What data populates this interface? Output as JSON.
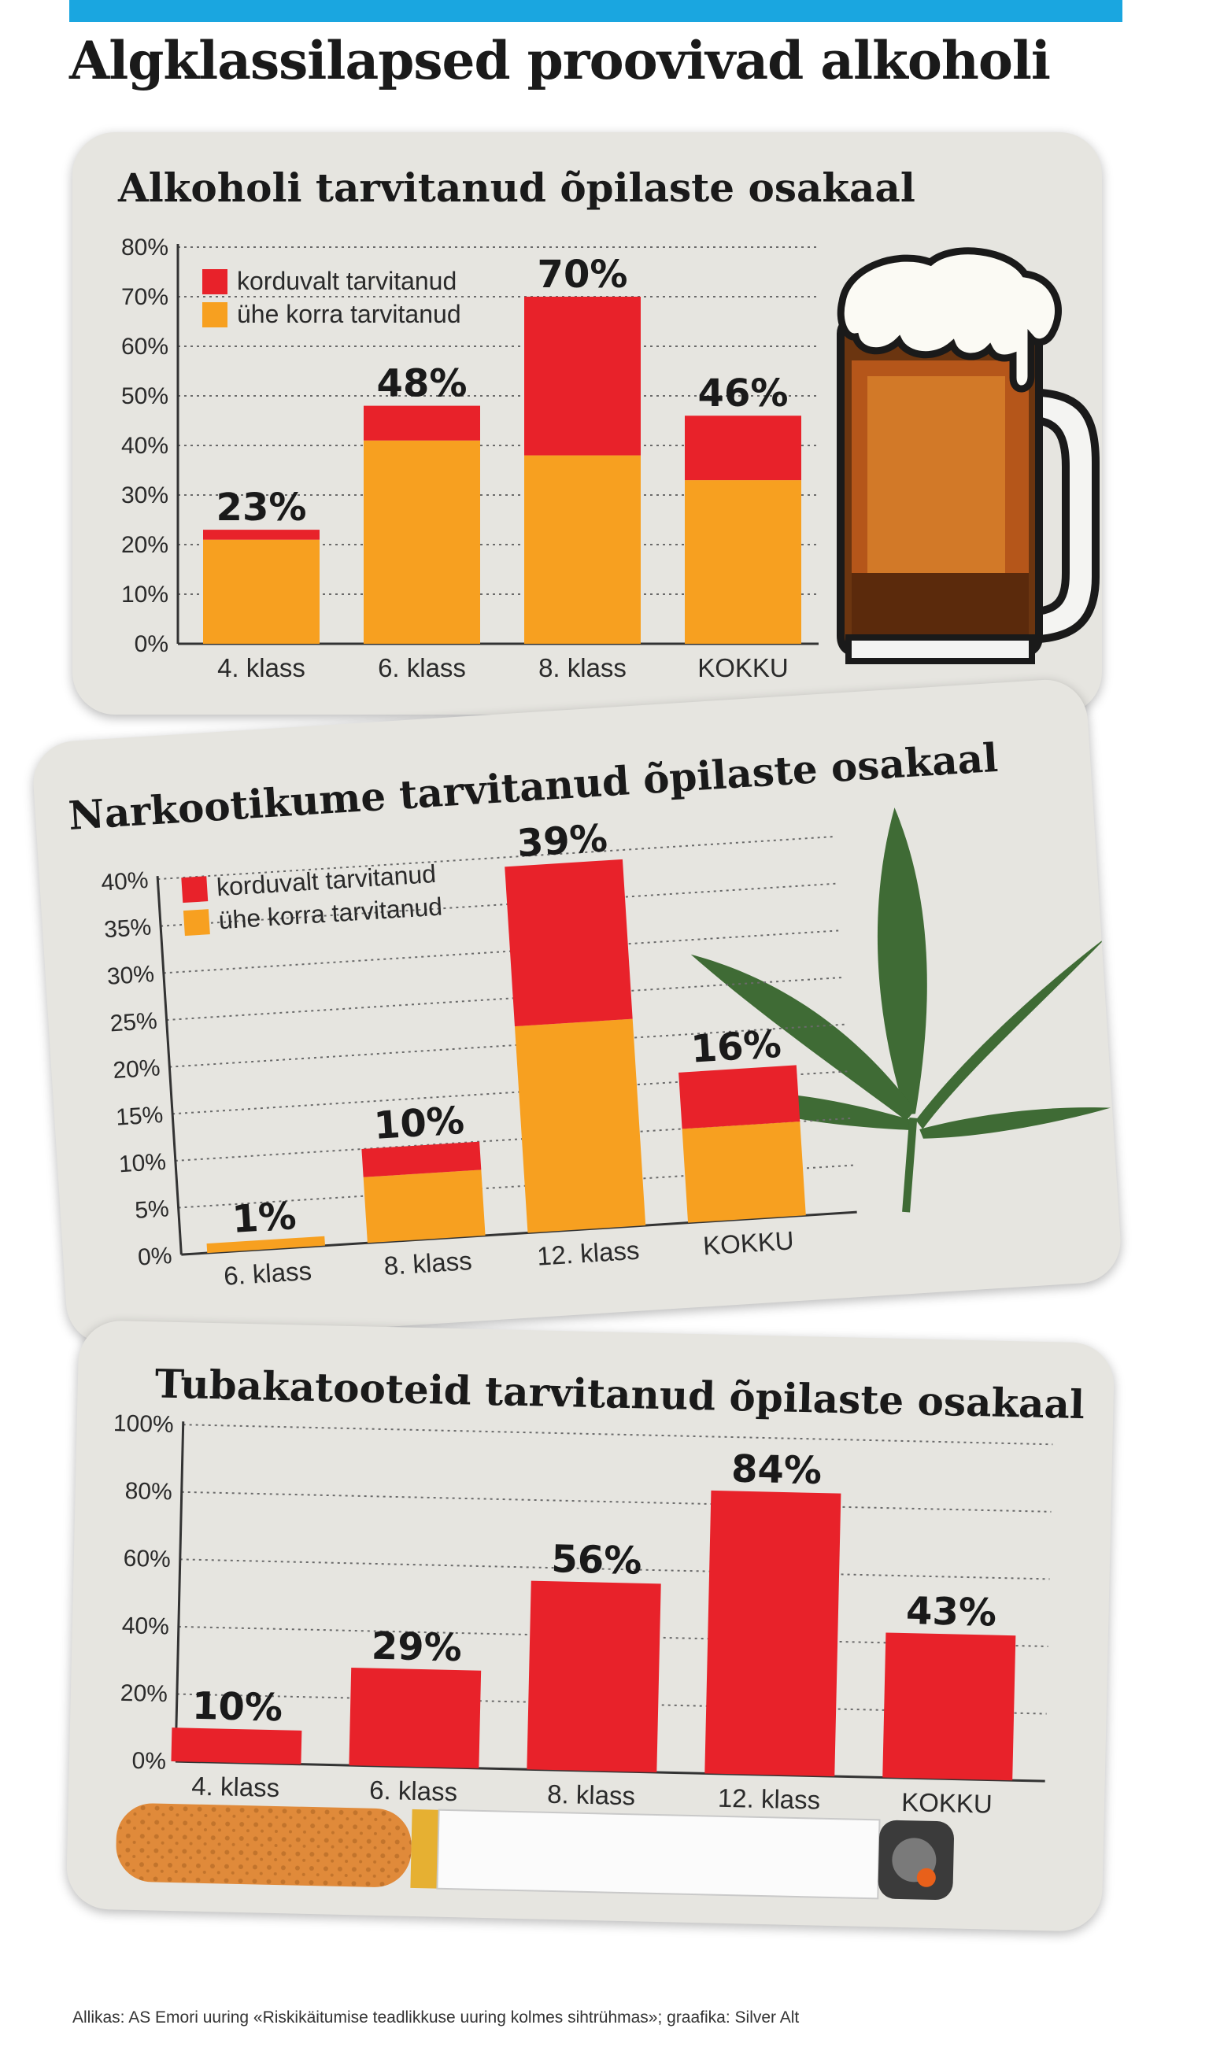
{
  "title": "Algklassilapsed proovivad alkoholi",
  "colors": {
    "accent_bar": "#1aa6e0",
    "korduvalt": "#e8222a",
    "yhe_korra": "#f7a020",
    "card_bg": "#e6e5e0",
    "leaf": "#3f6b35"
  },
  "icons": [
    "beer-mug-icon",
    "cannabis-leaf-icon",
    "cigarette-icon"
  ],
  "source": "Allikas: AS Emori uuring «Riskikäitumise teadlikkuse uuring kolmes sihtrühmas»; graafika: Silver Alt",
  "chart_data": [
    {
      "type": "bar",
      "stacked": true,
      "title": "Alkoholi tarvitanud õpilaste osakaal",
      "categories": [
        "4. klass",
        "6. klass",
        "8. klass",
        "KOKKU"
      ],
      "series": [
        {
          "name": "korduvalt tarvitanud",
          "values": [
            2,
            7,
            32,
            13
          ]
        },
        {
          "name": "ühe korra tarvitanud",
          "values": [
            21,
            41,
            38,
            33
          ]
        }
      ],
      "totals": [
        23,
        48,
        70,
        46
      ],
      "total_labels": [
        "23%",
        "48%",
        "70%",
        "46%"
      ],
      "ylim": [
        0,
        80
      ],
      "yticks": [
        "0%",
        "10%",
        "20%",
        "30%",
        "40%",
        "50%",
        "60%",
        "70%",
        "80%"
      ],
      "grid": true,
      "legend": "top-left"
    },
    {
      "type": "bar",
      "stacked": true,
      "title": "Narkootikume tarvitanud õpilaste osakaal",
      "categories": [
        "6. klass",
        "8. klass",
        "12. klass",
        "KOKKU"
      ],
      "series": [
        {
          "name": "korduvalt tarvitanud",
          "values": [
            0,
            3,
            17,
            6
          ]
        },
        {
          "name": "ühe korra tarvitanud",
          "values": [
            1,
            7,
            22,
            10
          ]
        }
      ],
      "totals": [
        1,
        10,
        39,
        16
      ],
      "total_labels": [
        "1%",
        "10%",
        "39%",
        "16%"
      ],
      "ylim": [
        0,
        40
      ],
      "yticks": [
        "0%",
        "5%",
        "10%",
        "15%",
        "20%",
        "25%",
        "30%",
        "35%",
        "40%"
      ],
      "grid": true,
      "legend": "top-left"
    },
    {
      "type": "bar",
      "stacked": false,
      "title": "Tubakatooteid tarvitanud õpilaste osakaal",
      "categories": [
        "4. klass",
        "6. klass",
        "8. klass",
        "12. klass",
        "KOKKU"
      ],
      "series": [
        {
          "values": [
            10,
            29,
            56,
            84,
            43
          ]
        }
      ],
      "totals": [
        10,
        29,
        56,
        84,
        43
      ],
      "total_labels": [
        "10%",
        "29%",
        "56%",
        "84%",
        "43%"
      ],
      "ylim": [
        0,
        100
      ],
      "yticks": [
        "0%",
        "20%",
        "40%",
        "60%",
        "80%",
        "100%"
      ],
      "grid": true
    }
  ]
}
